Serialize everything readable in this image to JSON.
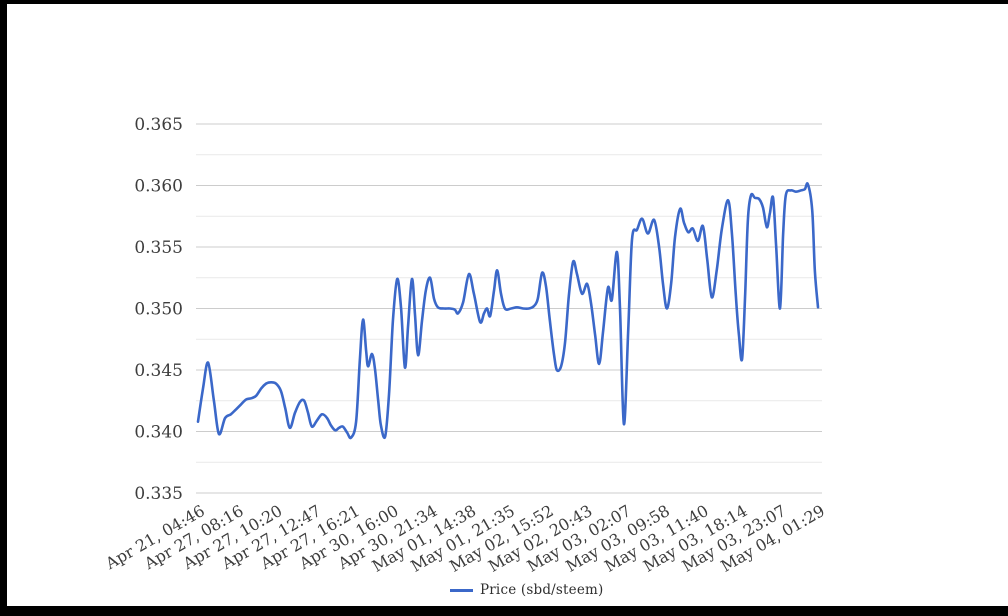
{
  "colors": {
    "line": "#3b68c9",
    "major_grid": "#cccccc",
    "minor_grid": "#e9e9e9",
    "label_text": "#3d3d3d",
    "background": "#ffffff",
    "frame": "#000000"
  },
  "legend": {
    "label": "Price (sbd/steem)"
  },
  "chart_data": {
    "type": "line",
    "title": "",
    "xlabel": "",
    "ylabel": "",
    "legend_position": "bottom",
    "grid": true,
    "y_axis": {
      "min": 0.335,
      "max": 0.365,
      "major_step": 0.005,
      "tick_labels": [
        "0.365",
        "0.360",
        "0.355",
        "0.350",
        "0.345",
        "0.340",
        "0.335"
      ],
      "minor_gridlines": true
    },
    "x_axis": {
      "labels": [
        "Apr 21, 04:46",
        "Apr 27, 08:16",
        "Apr 27, 10:20",
        "Apr 27, 12:47",
        "Apr 27, 16:21",
        "Apr 30, 16:00",
        "Apr 30, 21:34",
        "May 01, 14:38",
        "May 01, 21:35",
        "May 02, 15:52",
        "May 02, 20:43",
        "May 03, 02:07",
        "May 03, 09:58",
        "May 03, 11:40",
        "May 03, 18:14",
        "May 03, 23:07",
        "May 04, 01:29"
      ],
      "label_rotation_deg": -30
    },
    "series": [
      {
        "name": "Price (sbd/steem)",
        "color": "#3b68c9",
        "points": [
          [
            0.0,
            0.3408
          ],
          [
            0.13,
            0.3435
          ],
          [
            0.26,
            0.3456
          ],
          [
            0.41,
            0.3425
          ],
          [
            0.54,
            0.3398
          ],
          [
            0.7,
            0.3411
          ],
          [
            0.85,
            0.3414
          ],
          [
            0.98,
            0.3418
          ],
          [
            1.11,
            0.3422
          ],
          [
            1.24,
            0.3426
          ],
          [
            1.37,
            0.3427
          ],
          [
            1.5,
            0.3429
          ],
          [
            1.63,
            0.3435
          ],
          [
            1.76,
            0.3439
          ],
          [
            1.88,
            0.344
          ],
          [
            2.01,
            0.3439
          ],
          [
            2.14,
            0.3433
          ],
          [
            2.25,
            0.3419
          ],
          [
            2.37,
            0.3403
          ],
          [
            2.5,
            0.3415
          ],
          [
            2.63,
            0.3424
          ],
          [
            2.74,
            0.3425
          ],
          [
            2.84,
            0.3415
          ],
          [
            2.94,
            0.3404
          ],
          [
            3.07,
            0.3409
          ],
          [
            3.2,
            0.3414
          ],
          [
            3.33,
            0.3411
          ],
          [
            3.43,
            0.3405
          ],
          [
            3.54,
            0.3401
          ],
          [
            3.64,
            0.3403
          ],
          [
            3.74,
            0.3404
          ],
          [
            3.85,
            0.3399
          ],
          [
            3.95,
            0.3395
          ],
          [
            4.08,
            0.3408
          ],
          [
            4.18,
            0.346
          ],
          [
            4.26,
            0.3491
          ],
          [
            4.34,
            0.3465
          ],
          [
            4.39,
            0.3453
          ],
          [
            4.49,
            0.3463
          ],
          [
            4.57,
            0.345
          ],
          [
            4.65,
            0.3425
          ],
          [
            4.72,
            0.3405
          ],
          [
            4.83,
            0.3396
          ],
          [
            4.93,
            0.343
          ],
          [
            5.03,
            0.349
          ],
          [
            5.14,
            0.3524
          ],
          [
            5.24,
            0.35
          ],
          [
            5.34,
            0.3452
          ],
          [
            5.42,
            0.3485
          ],
          [
            5.52,
            0.3524
          ],
          [
            5.6,
            0.3495
          ],
          [
            5.68,
            0.3462
          ],
          [
            5.78,
            0.349
          ],
          [
            5.88,
            0.3515
          ],
          [
            5.99,
            0.3525
          ],
          [
            6.09,
            0.3508
          ],
          [
            6.19,
            0.3501
          ],
          [
            6.35,
            0.35
          ],
          [
            6.5,
            0.35
          ],
          [
            6.63,
            0.3499
          ],
          [
            6.71,
            0.3496
          ],
          [
            6.84,
            0.3505
          ],
          [
            6.99,
            0.3528
          ],
          [
            7.12,
            0.3512
          ],
          [
            7.28,
            0.3489
          ],
          [
            7.38,
            0.3496
          ],
          [
            7.46,
            0.35
          ],
          [
            7.54,
            0.3494
          ],
          [
            7.64,
            0.3515
          ],
          [
            7.72,
            0.3531
          ],
          [
            7.82,
            0.3512
          ],
          [
            7.92,
            0.35
          ],
          [
            8.08,
            0.35
          ],
          [
            8.23,
            0.3501
          ],
          [
            8.39,
            0.35
          ],
          [
            8.54,
            0.35
          ],
          [
            8.67,
            0.3502
          ],
          [
            8.77,
            0.3508
          ],
          [
            8.88,
            0.3529
          ],
          [
            8.98,
            0.3518
          ],
          [
            9.08,
            0.349
          ],
          [
            9.19,
            0.3462
          ],
          [
            9.26,
            0.345
          ],
          [
            9.37,
            0.3453
          ],
          [
            9.47,
            0.3472
          ],
          [
            9.57,
            0.351
          ],
          [
            9.68,
            0.3538
          ],
          [
            9.78,
            0.3528
          ],
          [
            9.91,
            0.3512
          ],
          [
            10.04,
            0.352
          ],
          [
            10.14,
            0.3505
          ],
          [
            10.25,
            0.3478
          ],
          [
            10.35,
            0.3455
          ],
          [
            10.45,
            0.348
          ],
          [
            10.58,
            0.3517
          ],
          [
            10.68,
            0.3507
          ],
          [
            10.81,
            0.3546
          ],
          [
            10.89,
            0.35
          ],
          [
            10.99,
            0.3406
          ],
          [
            11.1,
            0.348
          ],
          [
            11.2,
            0.3556
          ],
          [
            11.33,
            0.3564
          ],
          [
            11.46,
            0.3573
          ],
          [
            11.61,
            0.3561
          ],
          [
            11.77,
            0.3572
          ],
          [
            11.9,
            0.355
          ],
          [
            12.0,
            0.352
          ],
          [
            12.1,
            0.35
          ],
          [
            12.21,
            0.352
          ],
          [
            12.31,
            0.3558
          ],
          [
            12.44,
            0.3581
          ],
          [
            12.54,
            0.357
          ],
          [
            12.65,
            0.3562
          ],
          [
            12.77,
            0.3565
          ],
          [
            12.9,
            0.3555
          ],
          [
            13.03,
            0.3567
          ],
          [
            13.14,
            0.354
          ],
          [
            13.26,
            0.3509
          ],
          [
            13.39,
            0.3532
          ],
          [
            13.52,
            0.3565
          ],
          [
            13.68,
            0.3588
          ],
          [
            13.78,
            0.356
          ],
          [
            13.88,
            0.351
          ],
          [
            13.96,
            0.3478
          ],
          [
            14.04,
            0.3459
          ],
          [
            14.12,
            0.3512
          ],
          [
            14.19,
            0.3572
          ],
          [
            14.27,
            0.3592
          ],
          [
            14.37,
            0.359
          ],
          [
            14.48,
            0.3589
          ],
          [
            14.58,
            0.3582
          ],
          [
            14.68,
            0.3566
          ],
          [
            14.76,
            0.3578
          ],
          [
            14.84,
            0.359
          ],
          [
            14.92,
            0.355
          ],
          [
            15.02,
            0.35
          ],
          [
            15.1,
            0.356
          ],
          [
            15.17,
            0.3592
          ],
          [
            15.3,
            0.3596
          ],
          [
            15.43,
            0.3595
          ],
          [
            15.56,
            0.3596
          ],
          [
            15.66,
            0.3597
          ],
          [
            15.74,
            0.3601
          ],
          [
            15.85,
            0.358
          ],
          [
            15.92,
            0.353
          ],
          [
            16.0,
            0.3501
          ]
        ]
      }
    ]
  }
}
